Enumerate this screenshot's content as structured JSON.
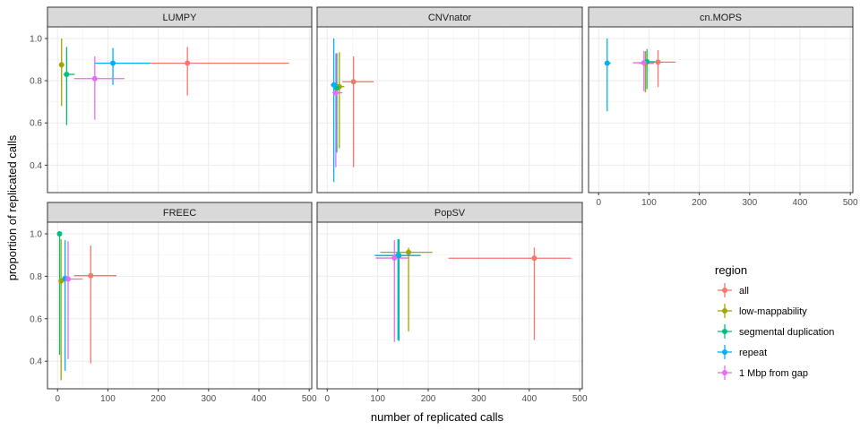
{
  "chart_data": {
    "type": "scatter",
    "xlabel": "number of replicated calls",
    "ylabel": "proportion of replicated calls",
    "xlim": [
      -20,
      505
    ],
    "ylim": [
      0.27,
      1.055
    ],
    "x_ticks": [
      0,
      100,
      200,
      300,
      400,
      500
    ],
    "y_ticks": [
      0.4,
      0.6,
      0.8,
      1.0
    ],
    "x_tick_labels": [
      "0",
      "100",
      "200",
      "300",
      "400",
      "500"
    ],
    "y_tick_labels": [
      "0.4",
      "0.6",
      "0.8",
      "1.0"
    ],
    "grid": true,
    "legend": {
      "title": "region",
      "placement": "right",
      "entries": [
        "all",
        "low-mappability",
        "segmental duplication",
        "repeat",
        "1 Mbp from gap"
      ]
    },
    "colors": {
      "all": "#F8766D",
      "low-mappability": "#A3A500",
      "segmental duplication": "#00BF7D",
      "repeat": "#00B0F6",
      "1 Mbp from gap": "#E76BF3"
    },
    "panels": [
      {
        "name": "LUMPY",
        "points": [
          {
            "region": "all",
            "x": 258,
            "y": 0.883,
            "xmin": 185,
            "xmax": 460,
            "ymin": 0.73,
            "ymax": 0.96
          },
          {
            "region": "low-mappability",
            "x": 8,
            "y": 0.875,
            "xmin": 3,
            "xmax": 12,
            "ymin": 0.68,
            "ymax": 1.0
          },
          {
            "region": "segmental duplication",
            "x": 18,
            "y": 0.83,
            "xmin": 12,
            "xmax": 34,
            "ymin": 0.59,
            "ymax": 0.96
          },
          {
            "region": "repeat",
            "x": 110,
            "y": 0.883,
            "xmin": 74,
            "xmax": 185,
            "ymin": 0.78,
            "ymax": 0.955
          },
          {
            "region": "1 Mbp from gap",
            "x": 74,
            "y": 0.81,
            "xmin": 33,
            "xmax": 133,
            "ymin": 0.615,
            "ymax": 0.915
          }
        ]
      },
      {
        "name": "CNVnator",
        "points": [
          {
            "region": "all",
            "x": 52,
            "y": 0.795,
            "xmin": 30,
            "xmax": 92,
            "ymin": 0.39,
            "ymax": 0.915
          },
          {
            "region": "low-mappability",
            "x": 24,
            "y": 0.772,
            "xmin": 17,
            "xmax": 34,
            "ymin": 0.48,
            "ymax": 0.935
          },
          {
            "region": "segmental duplication",
            "x": 19,
            "y": 0.765,
            "xmin": 15,
            "xmax": 27,
            "ymin": 0.46,
            "ymax": 0.93
          },
          {
            "region": "repeat",
            "x": 13,
            "y": 0.78,
            "xmin": 7,
            "xmax": 23,
            "ymin": 0.32,
            "ymax": 1.0
          },
          {
            "region": "1 Mbp from gap",
            "x": 17,
            "y": 0.743,
            "xmin": 10,
            "xmax": 30,
            "ymin": 0.39,
            "ymax": 0.93
          }
        ]
      },
      {
        "name": "cn.MOPS",
        "points": [
          {
            "region": "all",
            "x": 118,
            "y": 0.888,
            "xmin": 88,
            "xmax": 153,
            "ymin": 0.77,
            "ymax": 0.945
          },
          {
            "region": "low-mappability",
            "x": 93,
            "y": 0.882,
            "xmin": 80,
            "xmax": 110,
            "ymin": 0.745,
            "ymax": 0.94
          },
          {
            "region": "segmental duplication",
            "x": 96,
            "y": 0.89,
            "xmin": 85,
            "xmax": 112,
            "ymin": 0.76,
            "ymax": 0.95
          },
          {
            "region": "repeat",
            "x": 17,
            "y": 0.883,
            "xmin": 12,
            "xmax": 24,
            "ymin": 0.655,
            "ymax": 1.0
          },
          {
            "region": "1 Mbp from gap",
            "x": 90,
            "y": 0.885,
            "xmin": 68,
            "xmax": 110,
            "ymin": 0.75,
            "ymax": 0.94
          }
        ]
      },
      {
        "name": "FREEC",
        "points": [
          {
            "region": "all",
            "x": 66,
            "y": 0.803,
            "xmin": 33,
            "xmax": 117,
            "ymin": 0.39,
            "ymax": 0.945
          },
          {
            "region": "low-mappability",
            "x": 7,
            "y": 0.778,
            "xmin": 3,
            "xmax": 14,
            "ymin": 0.31,
            "ymax": 0.975
          },
          {
            "region": "segmental duplication",
            "x": 4,
            "y": 1.0,
            "xmin": 2,
            "xmax": 7,
            "ymin": 0.43,
            "ymax": 1.0
          },
          {
            "region": "repeat",
            "x": 15,
            "y": 0.79,
            "xmin": 9,
            "xmax": 23,
            "ymin": 0.355,
            "ymax": 0.97
          },
          {
            "region": "1 Mbp from gap",
            "x": 21,
            "y": 0.787,
            "xmin": 11,
            "xmax": 50,
            "ymin": 0.41,
            "ymax": 0.965
          }
        ]
      },
      {
        "name": "PopSV",
        "points": [
          {
            "region": "all",
            "x": 410,
            "y": 0.885,
            "xmin": 240,
            "xmax": 483,
            "ymin": 0.5,
            "ymax": 0.935
          },
          {
            "region": "low-mappability",
            "x": 161,
            "y": 0.913,
            "xmin": 105,
            "xmax": 208,
            "ymin": 0.54,
            "ymax": 0.935
          },
          {
            "region": "segmental duplication",
            "x": 142,
            "y": 0.898,
            "xmin": 100,
            "xmax": 185,
            "ymin": 0.495,
            "ymax": 0.975
          },
          {
            "region": "repeat",
            "x": 140,
            "y": 0.898,
            "xmin": 94,
            "xmax": 178,
            "ymin": 0.5,
            "ymax": 0.975
          },
          {
            "region": "1 Mbp from gap",
            "x": 133,
            "y": 0.886,
            "xmin": 96,
            "xmax": 160,
            "ymin": 0.49,
            "ymax": 0.97
          }
        ]
      }
    ]
  }
}
